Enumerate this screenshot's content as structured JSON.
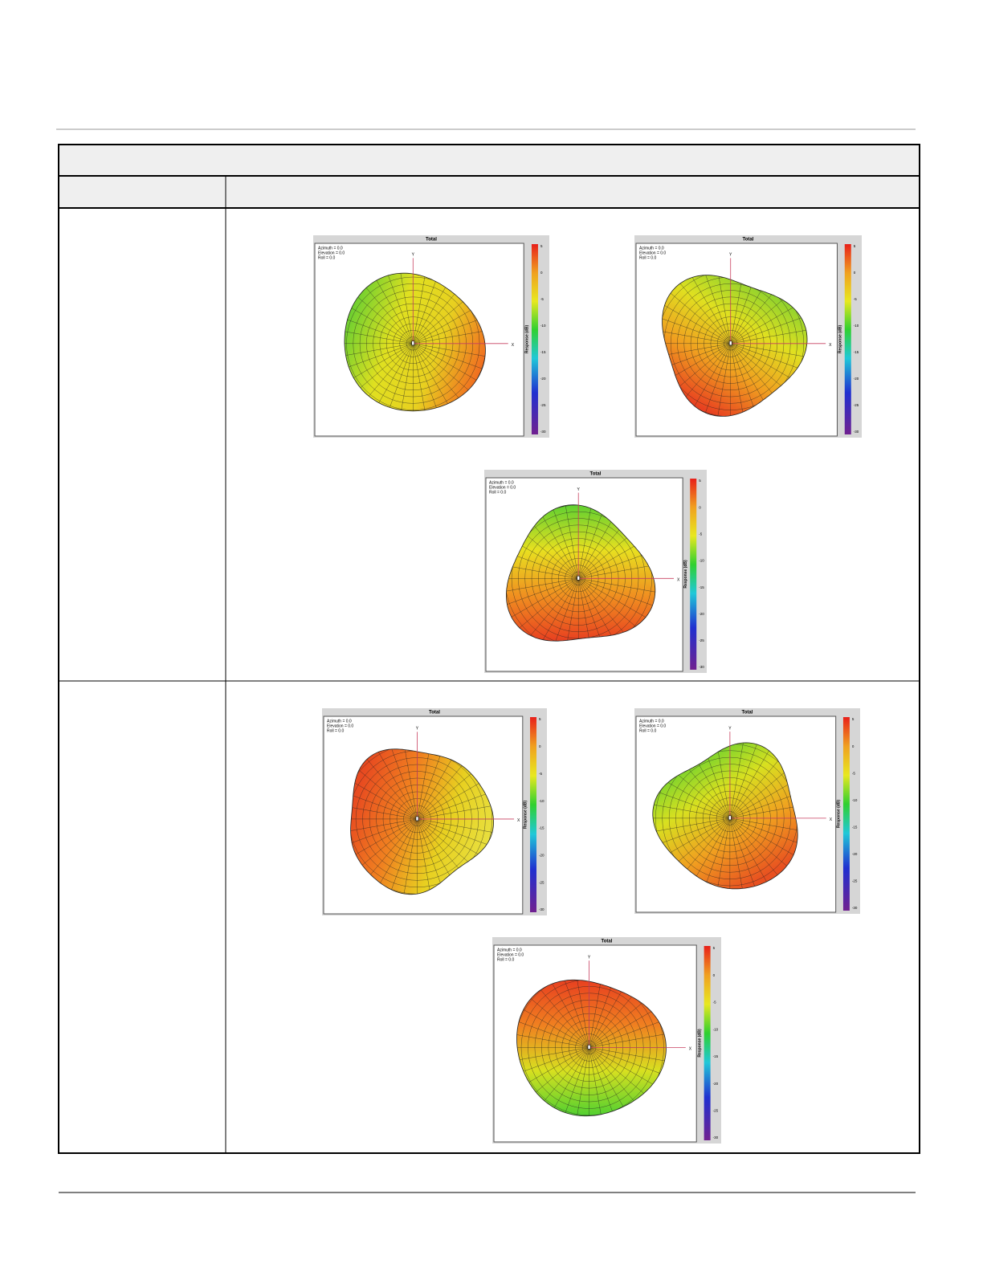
{
  "plots": [
    {
      "title": "Total",
      "info": [
        "Azimuth = 0.0",
        "Elevation = 0.0",
        "Roll = 0.0"
      ],
      "axis_x": "X",
      "axis_y": "Y",
      "colorbar_label": "Response (dB)",
      "colorbar_ticks": [
        "5",
        "0",
        "-5",
        "-10",
        "-15",
        "-20",
        "-25",
        "-30"
      ]
    },
    {
      "title": "Total",
      "info": [
        "Azimuth = 0.0",
        "Elevation = 0.0",
        "Roll = 0.0"
      ],
      "axis_x": "X",
      "axis_y": "Y",
      "colorbar_label": "Response (dB)",
      "colorbar_ticks": [
        "5",
        "0",
        "-5",
        "-10",
        "-15",
        "-20",
        "-25",
        "-30"
      ]
    },
    {
      "title": "Total",
      "info": [
        "Azimuth = 0.0",
        "Elevation = 0.0",
        "Roll = 0.0"
      ],
      "axis_x": "X",
      "axis_y": "Y",
      "colorbar_label": "Response (dB)",
      "colorbar_ticks": [
        "5",
        "0",
        "-5",
        "-10",
        "-15",
        "-20",
        "-25",
        "-30"
      ]
    },
    {
      "title": "Total",
      "info": [
        "Azimuth = 0.0",
        "Elevation = 0.0",
        "Roll = 0.0"
      ],
      "axis_x": "X",
      "axis_y": "Y",
      "colorbar_label": "Response (dB)",
      "colorbar_ticks": [
        "5",
        "0",
        "-5",
        "-10",
        "-15",
        "-20",
        "-25",
        "-30"
      ]
    },
    {
      "title": "Total",
      "info": [
        "Azimuth = 0.0",
        "Elevation = 0.0",
        "Roll = 0.0"
      ],
      "axis_x": "X",
      "axis_y": "Y",
      "colorbar_label": "Response (dB)",
      "colorbar_ticks": [
        "5",
        "0",
        "-5",
        "-10",
        "-15",
        "-20",
        "-25",
        "-30"
      ]
    },
    {
      "title": "Total",
      "info": [
        "Azimuth = 0.0",
        "Elevation = 0.0",
        "Roll = 0.0"
      ],
      "axis_x": "X",
      "axis_y": "Y",
      "colorbar_label": "Response (dB)",
      "colorbar_ticks": [
        "5",
        "0",
        "-5",
        "-10",
        "-15",
        "-20",
        "-25",
        "-30"
      ]
    }
  ]
}
